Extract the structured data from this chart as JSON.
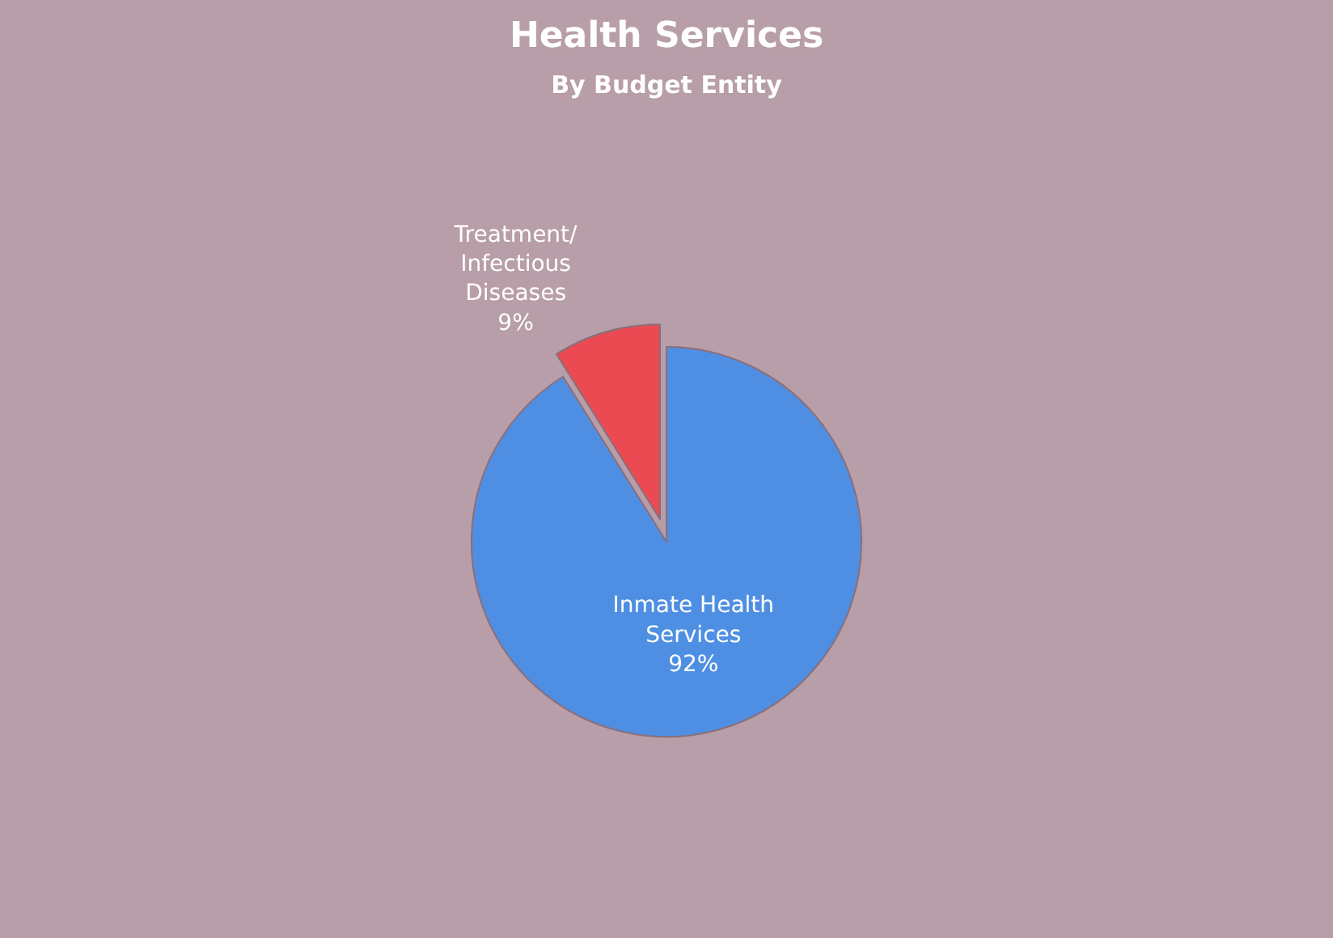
{
  "chart_data": {
    "type": "pie",
    "title": "Health Services",
    "subtitle": "By Budget Entity",
    "categories": [
      "Inmate Health Services",
      "Treatment/ Infectious Diseases"
    ],
    "values": [
      92,
      9
    ],
    "colors": [
      "#4f8fe3",
      "#ec4a52"
    ],
    "value_labels": [
      "92%",
      "9%"
    ],
    "legend": false
  }
}
